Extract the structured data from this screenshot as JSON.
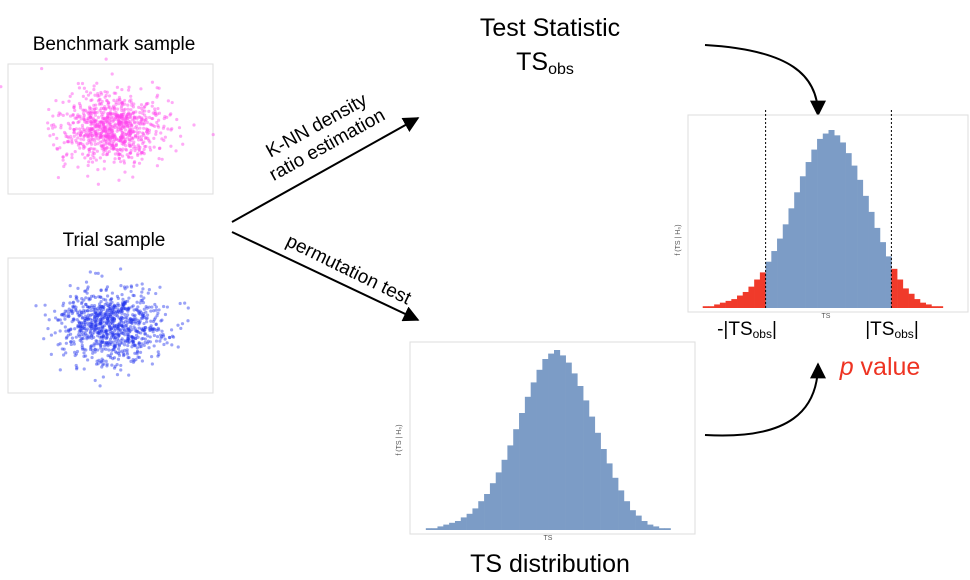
{
  "benchmark": {
    "title": "Benchmark sample"
  },
  "trial": {
    "title": "Trial sample"
  },
  "arrows": {
    "knn": [
      "K-NN density",
      "ratio estimation"
    ],
    "permutation": "permutation test"
  },
  "test_statistic": {
    "title": "Test Statistic",
    "symbol": "TS",
    "subscript": "obs"
  },
  "ts_distribution": {
    "caption": "TS distribution",
    "y_label": "f (TS | H₀)",
    "x_label": "TS",
    "counts": [
      0,
      1,
      1,
      2,
      3,
      4,
      5,
      7,
      9,
      12,
      16,
      20,
      26,
      32,
      39,
      47,
      56,
      65,
      74,
      82,
      89,
      95,
      98,
      100,
      97,
      93,
      87,
      80,
      72,
      63,
      54,
      45,
      37,
      29,
      22,
      16,
      11,
      8,
      5,
      3,
      2,
      1,
      1,
      0,
      0,
      0
    ]
  },
  "p_value": {
    "y_label": "f (TS | H₀)",
    "x_label": "TS",
    "left_label": {
      "prefix": "-|TS",
      "subscript": "obs",
      "suffix": "|"
    },
    "right_label": {
      "prefix": "|TS",
      "subscript": "obs",
      "suffix": "|"
    },
    "italic": "p",
    "text": "value",
    "counts": [
      0,
      1,
      1,
      2,
      3,
      4,
      5,
      7,
      9,
      12,
      16,
      20,
      26,
      32,
      39,
      47,
      56,
      65,
      74,
      82,
      89,
      95,
      98,
      100,
      97,
      93,
      87,
      80,
      72,
      63,
      54,
      45,
      37,
      29,
      22,
      16,
      11,
      8,
      5,
      3,
      2,
      1,
      1,
      0,
      0,
      0
    ]
  }
}
